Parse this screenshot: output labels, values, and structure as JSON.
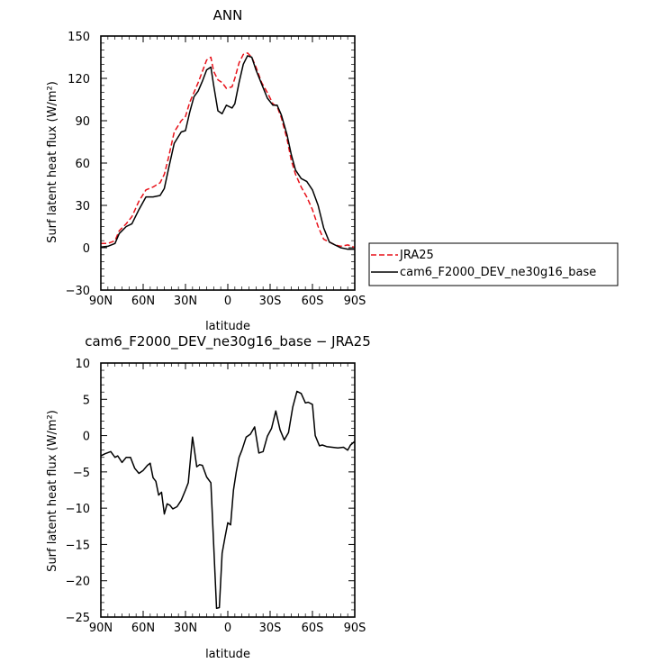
{
  "chart_data": [
    {
      "type": "line",
      "title": "ANN",
      "xlabel": "latitude",
      "ylabel": "Surf latent heat flux (W/m²)",
      "xlim": [
        -90,
        90
      ],
      "ylim": [
        -30,
        150
      ],
      "x_tick_labels": [
        "90N",
        "60N",
        "30N",
        "0",
        "30S",
        "60S",
        "90S"
      ],
      "y_tick_labels": [
        "−30",
        "0",
        "30",
        "60",
        "90",
        "120",
        "150"
      ],
      "legend_position": "right",
      "series": [
        {
          "name": "JRA25",
          "color": "#e8121a",
          "dash": "dashed",
          "x": [
            -90,
            -85,
            -80,
            -77,
            -72,
            -68,
            -63,
            -58,
            -53,
            -48,
            -45,
            -42,
            -38,
            -33,
            -30,
            -27,
            -24,
            -21,
            -18,
            -15,
            -12,
            -10,
            -7,
            -4,
            -1,
            3,
            5,
            8,
            11,
            14,
            17,
            20,
            24,
            28,
            32,
            35,
            38,
            42,
            45,
            48,
            52,
            56,
            60,
            64,
            68,
            72,
            76,
            80,
            85,
            88,
            90
          ],
          "y": [
            3,
            3,
            5,
            12,
            17,
            22,
            33,
            41,
            43,
            46,
            52,
            64,
            82,
            90,
            93,
            103,
            110,
            117,
            125,
            133,
            135,
            125,
            119,
            117,
            113,
            114,
            120,
            131,
            137,
            138,
            135,
            128,
            117,
            110,
            102,
            100,
            92,
            77,
            62,
            52,
            43,
            36,
            27,
            15,
            6,
            4,
            2,
            1,
            2,
            1,
            0
          ]
        },
        {
          "name": "cam6_F2000_DEV_ne30g16_base",
          "color": "#000000",
          "dash": "solid",
          "x": [
            -90,
            -85,
            -80,
            -77,
            -72,
            -68,
            -63,
            -58,
            -53,
            -48,
            -45,
            -42,
            -38,
            -33,
            -30,
            -27,
            -24,
            -21,
            -18,
            -15,
            -12,
            -10,
            -7,
            -4,
            -1,
            3,
            5,
            8,
            11,
            14,
            17,
            20,
            24,
            28,
            32,
            35,
            38,
            42,
            45,
            48,
            52,
            56,
            60,
            64,
            68,
            72,
            76,
            80,
            85,
            88,
            90
          ],
          "y": [
            0.5,
            1,
            3,
            10,
            15,
            17,
            27,
            36,
            36,
            37,
            42,
            56,
            74,
            82,
            83,
            96,
            107,
            111,
            118,
            126,
            128,
            115,
            97,
            95,
            101,
            99,
            102,
            117,
            130,
            136,
            135,
            126,
            116,
            106,
            101,
            101,
            94,
            80,
            66,
            55,
            49,
            47,
            41,
            30,
            14,
            4,
            2,
            0,
            -1,
            -1,
            -1
          ]
        }
      ]
    },
    {
      "type": "line",
      "title": "cam6_F2000_DEV_ne30g16_base − JRA25",
      "xlabel": "latitude",
      "ylabel": "Surf latent heat flux (W/m²)",
      "xlim": [
        -90,
        90
      ],
      "ylim": [
        -25,
        10
      ],
      "x_tick_labels": [
        "90N",
        "60N",
        "30N",
        "0",
        "30S",
        "60S",
        "90S"
      ],
      "y_tick_labels": [
        "−25",
        "−20",
        "−15",
        "−10",
        "−5",
        "0",
        "5",
        "10"
      ],
      "series": [
        {
          "color": "#000000",
          "x": [
            -90,
            -87,
            -83,
            -80,
            -78,
            -75,
            -72,
            -69,
            -66,
            -63,
            -60,
            -57,
            -55,
            -53,
            -51,
            -49,
            -47,
            -45,
            -43,
            -41,
            -39,
            -36,
            -33,
            -30,
            -28,
            -25,
            -24,
            -22,
            -20,
            -18,
            -15,
            -12,
            -10,
            -8,
            -6,
            -4,
            -2,
            0,
            2,
            4,
            6,
            8,
            10,
            13,
            16,
            19,
            22,
            25,
            28,
            31,
            34,
            37,
            40,
            43,
            46,
            49,
            52,
            55,
            57,
            60,
            62,
            65,
            67,
            70,
            74,
            78,
            82,
            85,
            87,
            90
          ],
          "y": [
            -2.8,
            -2.5,
            -2.2,
            -3,
            -2.8,
            -3.7,
            -3,
            -3,
            -4.5,
            -5.2,
            -4.8,
            -4.1,
            -3.8,
            -5.8,
            -6.3,
            -8.2,
            -7.8,
            -10.8,
            -9.4,
            -9.6,
            -10.1,
            -9.8,
            -8.9,
            -7.5,
            -6.5,
            -0.2,
            -1.5,
            -4.3,
            -4,
            -4.1,
            -5.7,
            -6.5,
            -15,
            -23.8,
            -23.7,
            -16.2,
            -14,
            -12,
            -12.3,
            -7.5,
            -5,
            -3,
            -2,
            -0.2,
            0.2,
            1.2,
            -2.4,
            -2.2,
            -0.1,
            1,
            3.4,
            0.8,
            -0.6,
            0.4,
            3.9,
            6.1,
            5.8,
            4.5,
            4.6,
            4.3,
            0,
            -1.4,
            -1.3,
            -1.5,
            -1.6,
            -1.7,
            -1.6,
            -2,
            -1.3,
            -0.8
          ]
        }
      ]
    }
  ]
}
